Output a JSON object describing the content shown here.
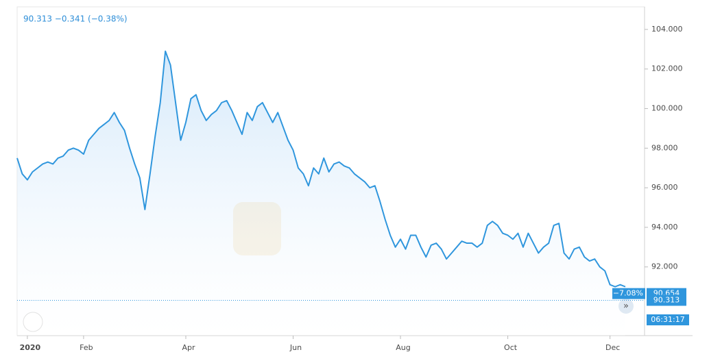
{
  "chart_data": {
    "type": "line",
    "legend_text": "90.313 −0.341 (−0.38%)",
    "color": "#2f96dd",
    "categories": [
      null,
      null,
      "2020",
      null,
      null,
      null,
      null,
      null,
      null,
      null,
      null,
      null,
      null,
      "Feb",
      null,
      null,
      null,
      null,
      null,
      null,
      null,
      null,
      null,
      null,
      null,
      null,
      null,
      null,
      null,
      null,
      null,
      null,
      null,
      "Apr",
      null,
      null,
      null,
      null,
      null,
      null,
      null,
      null,
      null,
      null,
      null,
      null,
      null,
      null,
      null,
      null,
      null,
      null,
      null,
      null,
      "Jun",
      null,
      null,
      null,
      null,
      null,
      null,
      null,
      null,
      null,
      null,
      null,
      null,
      null,
      null,
      null,
      null,
      null,
      null,
      null,
      null,
      "Aug",
      null,
      null,
      null,
      null,
      null,
      null,
      null,
      null,
      null,
      null,
      null,
      null,
      null,
      null,
      null,
      null,
      null,
      null,
      null,
      null,
      "Oct",
      null,
      null,
      null,
      null,
      null,
      null,
      null,
      null,
      null,
      null,
      null,
      null,
      null,
      null,
      null,
      null,
      null,
      null,
      null,
      "Dec",
      null,
      null,
      null
    ],
    "values": [
      97.5,
      96.7,
      96.4,
      96.8,
      97.0,
      97.2,
      97.3,
      97.2,
      97.5,
      97.6,
      97.9,
      98.0,
      97.9,
      97.7,
      98.4,
      98.7,
      99.0,
      99.2,
      99.4,
      99.8,
      99.3,
      98.9,
      98.0,
      97.2,
      96.5,
      94.9,
      96.7,
      98.6,
      100.3,
      102.9,
      102.2,
      100.3,
      98.4,
      99.3,
      100.5,
      100.7,
      99.9,
      99.4,
      99.7,
      99.9,
      100.3,
      100.4,
      99.9,
      99.3,
      98.7,
      99.8,
      99.4,
      100.1,
      100.3,
      99.8,
      99.3,
      99.8,
      99.1,
      98.4,
      97.9,
      97.0,
      96.7,
      96.1,
      97.0,
      96.7,
      97.5,
      96.8,
      97.2,
      97.3,
      97.1,
      97.0,
      96.7,
      96.5,
      96.3,
      96.0,
      96.1,
      95.3,
      94.4,
      93.6,
      93.0,
      93.4,
      92.9,
      93.6,
      93.6,
      93.0,
      92.5,
      93.1,
      93.2,
      92.9,
      92.4,
      92.7,
      93.0,
      93.3,
      93.2,
      93.2,
      93.0,
      93.2,
      94.1,
      94.3,
      94.1,
      93.7,
      93.6,
      93.4,
      93.7,
      93.0,
      93.7,
      93.2,
      92.7,
      93.0,
      93.2,
      94.1,
      94.2,
      92.7,
      92.4,
      92.9,
      93.0,
      92.5,
      92.3,
      92.4,
      92.0,
      91.8,
      91.1,
      91.0,
      91.1,
      91.0
    ],
    "ylim": [
      88.53,
      105.14
    ],
    "yticks": [
      {
        "value": 92,
        "label": "92.000"
      },
      {
        "value": 94,
        "label": "94.000"
      },
      {
        "value": 96,
        "label": "96.000"
      },
      {
        "value": 98,
        "label": "98.000"
      },
      {
        "value": 100,
        "label": "100.000"
      },
      {
        "value": 102,
        "label": "102.000"
      },
      {
        "value": 104,
        "label": "104.000"
      }
    ],
    "price_markers": [
      {
        "value": 90.654,
        "label": "90.654",
        "change": "−7.08%"
      },
      {
        "value": 90.313,
        "label": "90.313"
      }
    ],
    "time_label": "06:31:17"
  }
}
